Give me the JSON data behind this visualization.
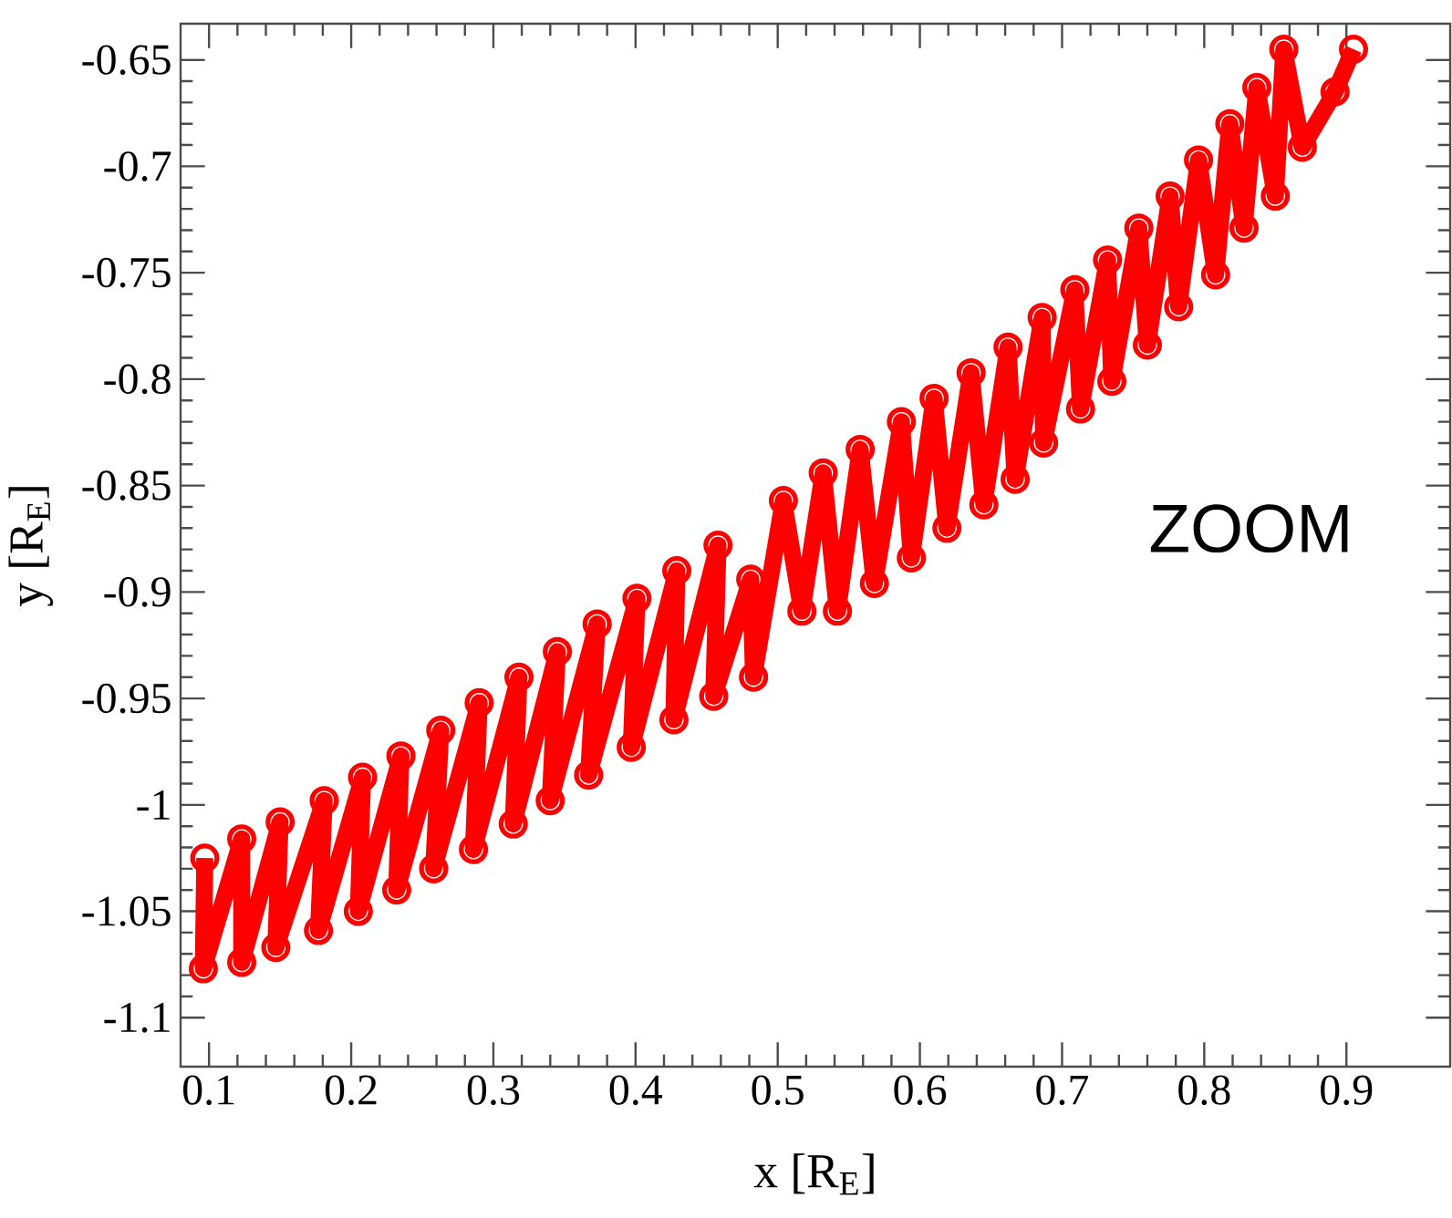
{
  "chart_data": {
    "type": "line",
    "xlabel": "x [R$_{E}$]",
    "ylabel": "y [R$_{E}$]",
    "annotations": [
      "ZOOM"
    ],
    "xlim": [
      0.08,
      0.973
    ],
    "ylim": [
      -1.123,
      -0.633
    ],
    "xticks": [
      0.1,
      0.2,
      0.3,
      0.4,
      0.5,
      0.6,
      0.7,
      0.8,
      0.9
    ],
    "yticks": [
      -1.1,
      -1.05,
      -1,
      -0.95,
      -0.9,
      -0.85,
      -0.8,
      -0.75,
      -0.7,
      -0.65
    ],
    "marker": "circle",
    "line_style": "solid",
    "series": [
      {
        "color": "#ff0000",
        "x": [
          0.097,
          0.096,
          0.123,
          0.123,
          0.15,
          0.147,
          0.181,
          0.177,
          0.208,
          0.205,
          0.235,
          0.232,
          0.263,
          0.258,
          0.29,
          0.286,
          0.318,
          0.314,
          0.345,
          0.34,
          0.373,
          0.367,
          0.401,
          0.397,
          0.429,
          0.427,
          0.458,
          0.455,
          0.481,
          0.483,
          0.504,
          0.517,
          0.532,
          0.542,
          0.558,
          0.568,
          0.587,
          0.594,
          0.61,
          0.619,
          0.636,
          0.645,
          0.662,
          0.667,
          0.686,
          0.687,
          0.709,
          0.713,
          0.732,
          0.735,
          0.754,
          0.76,
          0.776,
          0.782,
          0.796,
          0.808,
          0.818,
          0.828,
          0.837,
          0.85,
          0.856,
          0.869,
          0.892,
          0.905
        ],
        "values": [
          -1.025,
          -1.077,
          -1.016,
          -1.074,
          -1.008,
          -1.067,
          -0.998,
          -1.059,
          -0.987,
          -1.05,
          -0.977,
          -1.04,
          -0.965,
          -1.03,
          -0.952,
          -1.021,
          -0.94,
          -1.009,
          -0.928,
          -0.998,
          -0.915,
          -0.986,
          -0.903,
          -0.973,
          -0.89,
          -0.96,
          -0.878,
          -0.949,
          -0.894,
          -0.94,
          -0.857,
          -0.909,
          -0.844,
          -0.909,
          -0.833,
          -0.896,
          -0.82,
          -0.884,
          -0.809,
          -0.87,
          -0.797,
          -0.859,
          -0.785,
          -0.847,
          -0.771,
          -0.83,
          -0.758,
          -0.814,
          -0.744,
          -0.801,
          -0.729,
          -0.784,
          -0.714,
          -0.766,
          -0.697,
          -0.751,
          -0.68,
          -0.729,
          -0.663,
          -0.714,
          -0.645,
          -0.691,
          -0.665,
          -0.645
        ]
      }
    ]
  }
}
